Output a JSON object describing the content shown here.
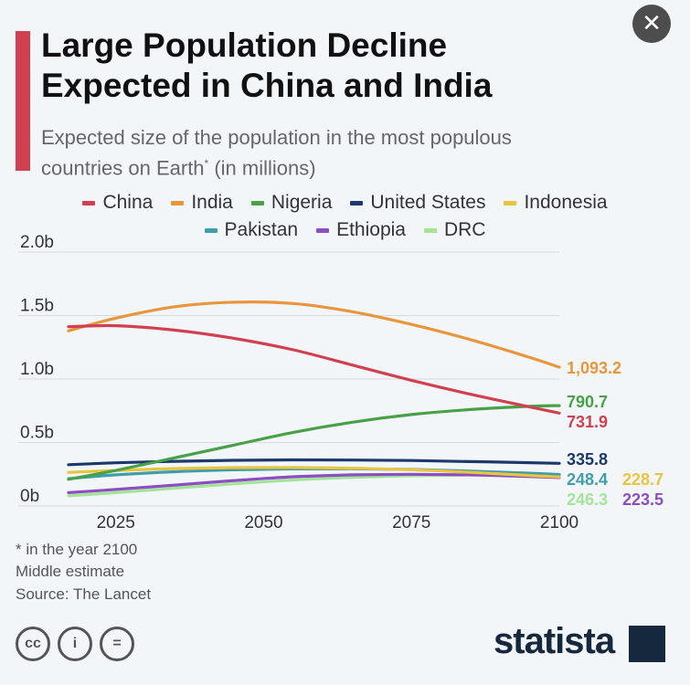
{
  "title_line1": "Large Population Decline",
  "title_line2": "Expected in China and India",
  "subtitle_line1": "Expected size of the population in the most populous",
  "subtitle_line2_pre": "countries on Earth",
  "subtitle_sup": "*",
  "subtitle_line2_post": " (in millions)",
  "close_label": "✕",
  "notes": {
    "asterisk": "* in the year 2100",
    "estimate": "Middle estimate",
    "source": "Source: The Lancet"
  },
  "footer": {
    "cc": "cc",
    "by": "i",
    "nd": "=",
    "brand": "statista"
  },
  "chart_data": {
    "type": "line",
    "x": [
      2017,
      2025,
      2035,
      2045,
      2055,
      2065,
      2075,
      2085,
      2095,
      2100
    ],
    "series": [
      {
        "name": "China",
        "color": "#d1404f",
        "values": [
          1412,
          1420,
          1385,
          1320,
          1230,
          1110,
          990,
          880,
          780,
          731.9
        ],
        "end_label": "731.9"
      },
      {
        "name": "India",
        "color": "#e8963c",
        "values": [
          1380,
          1480,
          1570,
          1605,
          1595,
          1530,
          1430,
          1310,
          1170,
          1093.2
        ],
        "end_label": "1,093.2"
      },
      {
        "name": "Nigeria",
        "color": "#48a047",
        "values": [
          210,
          280,
          380,
          480,
          580,
          660,
          720,
          760,
          785,
          790.7
        ],
        "end_label": "790.7"
      },
      {
        "name": "United States",
        "color": "#1b3a6b",
        "values": [
          325,
          340,
          352,
          360,
          363,
          362,
          358,
          350,
          341,
          335.8
        ],
        "end_label": "335.8"
      },
      {
        "name": "Indonesia",
        "color": "#e8c440",
        "values": [
          265,
          280,
          295,
          302,
          303,
          297,
          285,
          265,
          240,
          228.7
        ],
        "end_label": "228.7"
      },
      {
        "name": "Pakistan",
        "color": "#3f9eaa",
        "values": [
          215,
          245,
          270,
          285,
          292,
          293,
          288,
          275,
          258,
          248.4
        ],
        "end_label": "248.4"
      },
      {
        "name": "Ethiopia",
        "color": "#8b4fc2",
        "values": [
          105,
          130,
          165,
          200,
          230,
          245,
          250,
          245,
          232,
          223.5
        ],
        "end_label": "223.5"
      },
      {
        "name": "DRC",
        "color": "#a3e497",
        "values": [
          80,
          105,
          140,
          175,
          205,
          225,
          238,
          244,
          246,
          246.3
        ],
        "end_label": "246.3"
      }
    ],
    "y_ticks": [
      0,
      500,
      1000,
      1500,
      2000
    ],
    "y_tick_labels": [
      "0b",
      "0.5b",
      "1.0b",
      "1.5b",
      "2.0b"
    ],
    "x_ticks": [
      2025,
      2050,
      2075,
      2100
    ],
    "x_tick_labels": [
      "2025",
      "2050",
      "2075",
      "2100"
    ],
    "xlim": [
      2017,
      2100
    ],
    "ylim": [
      0,
      2000
    ],
    "unit": "millions"
  }
}
